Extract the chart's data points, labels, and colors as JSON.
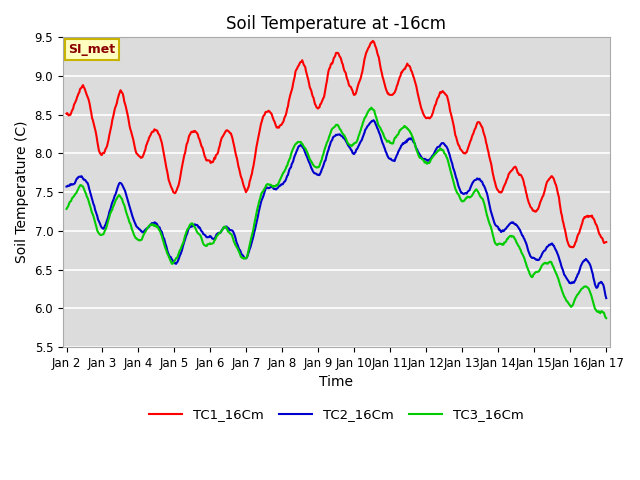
{
  "title": "Soil Temperature at -16cm",
  "xlabel": "Time",
  "ylabel": "Soil Temperature (C)",
  "ylim": [
    5.5,
    9.5
  ],
  "x_tick_labels": [
    "Jan 2",
    "Jan 3",
    "Jan 4",
    "Jan 5",
    "Jan 6",
    "Jan 7",
    "Jan 8",
    "Jan 9",
    "Jan 10",
    "Jan 11",
    "Jan 12",
    "Jan 13",
    "Jan 14",
    "Jan 15",
    "Jan 16",
    "Jan 17"
  ],
  "annotation_text": "SI_met",
  "annotation_color": "#8B0000",
  "annotation_bg": "#FFFFC0",
  "annotation_border": "#C8B400",
  "bg_color": "#DCDCDC",
  "line_colors": {
    "TC1": "#FF0000",
    "TC2": "#0000CC",
    "TC3": "#00CC00"
  },
  "line_width": 1.5,
  "legend_labels": [
    "TC1_16Cm",
    "TC2_16Cm",
    "TC3_16Cm"
  ],
  "title_fontsize": 12,
  "axis_fontsize": 10,
  "tick_fontsize": 8.5
}
